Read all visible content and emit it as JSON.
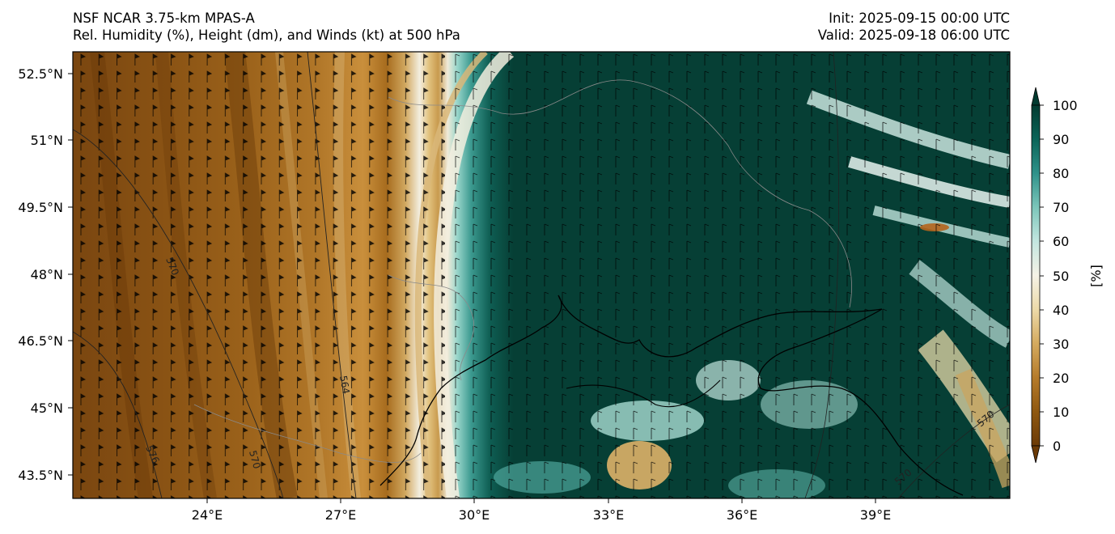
{
  "header": {
    "title_line1": "NSF NCAR 3.75-km MPAS-A",
    "title_line2": "Rel. Humidity (%), Height (dm), and Winds (kt) at 500 hPa",
    "init_line": "Init: 2025-09-15 00:00 UTC",
    "valid_line": "Valid: 2025-09-18 06:00 UTC"
  },
  "map": {
    "lat_labels": [
      "52.5°N",
      "51°N",
      "49.5°N",
      "48°N",
      "46.5°N",
      "45°N",
      "43.5°N"
    ],
    "lon_labels": [
      "24°E",
      "27°E",
      "30°E",
      "33°E",
      "36°E",
      "39°E"
    ],
    "contour_labels": [
      "570",
      "564",
      "576",
      "570",
      "570",
      "570"
    ]
  },
  "colorbar": {
    "ticks": [
      "0",
      "10",
      "20",
      "30",
      "40",
      "50",
      "60",
      "70",
      "80",
      "90",
      "100"
    ],
    "unit_label": "[%]",
    "colors": [
      "#5a3206",
      "#7f4c0c",
      "#a8701e",
      "#c99648",
      "#e2c583",
      "#f3ead4",
      "#cdeae6",
      "#8fd2c7",
      "#4ba79e",
      "#137b70",
      "#00473d",
      "#002f27"
    ]
  },
  "palette": {
    "dry_dark": "#6e3f0a",
    "dry_mid": "#b57b2b",
    "dry_light": "#e3c888",
    "neutral": "#f4f0e3",
    "moist_light": "#8fd0c4",
    "moist_mid": "#1d8278",
    "moist_dark": "#063f35",
    "coast": "#000000",
    "border": "#8a8a8a"
  }
}
